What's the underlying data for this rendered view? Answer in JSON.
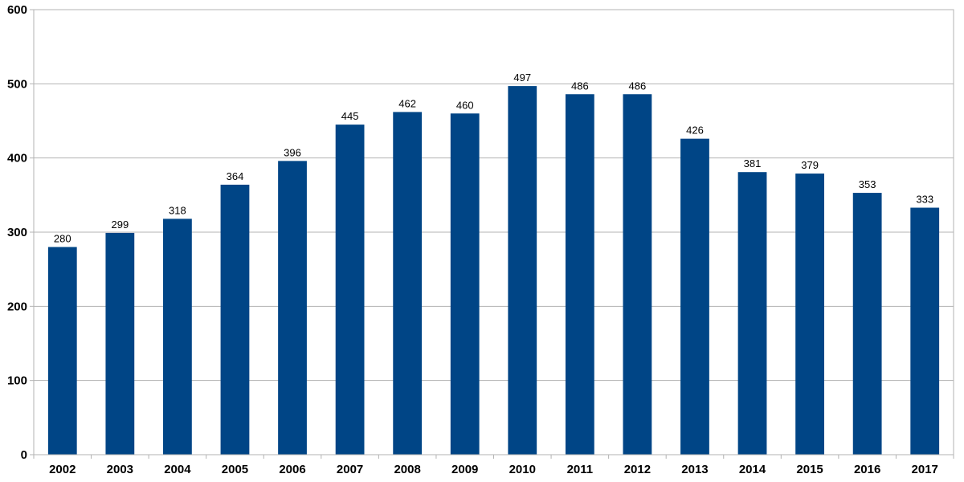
{
  "chart_data": {
    "type": "bar",
    "title": "",
    "xlabel": "",
    "ylabel": "",
    "categories": [
      "2002",
      "2003",
      "2004",
      "2005",
      "2006",
      "2007",
      "2008",
      "2009",
      "2010",
      "2011",
      "2012",
      "2013",
      "2014",
      "2015",
      "2016",
      "2017"
    ],
    "values": [
      280,
      299,
      318,
      364,
      396,
      445,
      462,
      460,
      497,
      486,
      486,
      426,
      381,
      379,
      353,
      333
    ],
    "ylim": [
      0,
      600
    ],
    "y_ticks": [
      0,
      100,
      200,
      300,
      400,
      500,
      600
    ],
    "grid": true,
    "legend": "none",
    "data_labels": true,
    "colors": {
      "bar": "#004586",
      "grid": "#b3b3b3"
    }
  }
}
